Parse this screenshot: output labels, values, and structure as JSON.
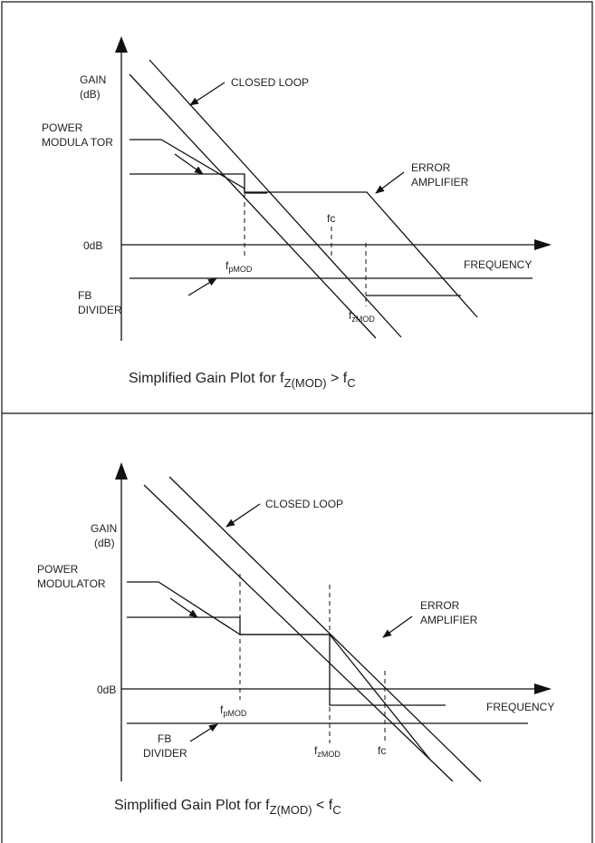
{
  "top": {
    "gain_label": "GAIN",
    "gain_unit": "(dB)",
    "power_modulator_line1": "POWER",
    "power_modulator_line2": "MODULA TOR",
    "closed_loop": "CLOSED LOOP",
    "error_amp_line1": "ERROR",
    "error_amp_line2": "AMPLIFIER",
    "odb": "0dB",
    "fc": "fc",
    "fpmod_main": "f",
    "fpmod_sub": "pMOD",
    "fzmod_main": "f",
    "fzmod_sub": "zMOD",
    "frequency": "FREQUENCY",
    "fb_line1": "FB",
    "fb_line2": "DIVIDER",
    "caption_text": "Simplified Gain Plot for f",
    "caption_sub1": "Z(MOD)",
    "caption_op": " > f",
    "caption_sub2": "C"
  },
  "bottom": {
    "gain_label": "GAIN",
    "gain_unit": "(dB)",
    "power_modulator_line1": "POWER",
    "power_modulator_line2": "MODULATOR",
    "closed_loop": "CLOSED LOOP",
    "error_amp_line1": "ERROR",
    "error_amp_line2": "AMPLIFIER",
    "odb": "0dB",
    "fc": "fc",
    "fpmod_main": "f",
    "fpmod_sub": "pMOD",
    "fzmod_main": "f",
    "fzmod_sub": "zMOD",
    "frequency": "FREQUENCY",
    "fb_line1": "FB",
    "fb_line2": "DIVIDER",
    "caption_text": "Simplified Gain Plot for f",
    "caption_sub1": "Z(MOD)",
    "caption_op": " < f",
    "caption_sub2": "C"
  }
}
